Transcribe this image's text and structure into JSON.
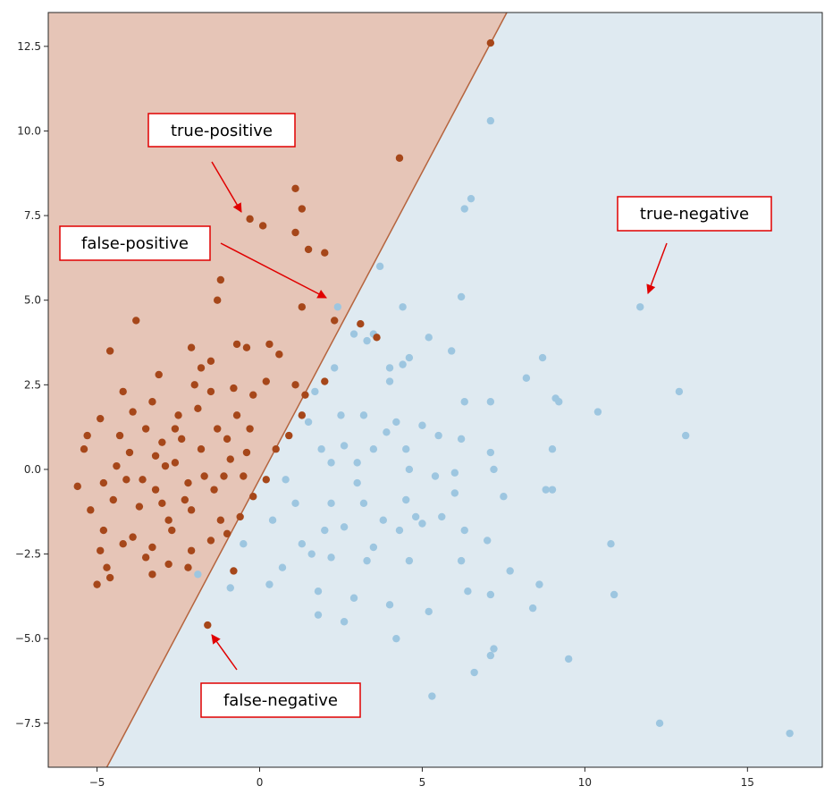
{
  "colors": {
    "positive_region": "#e6c5b7",
    "negative_region": "#dfeaf1",
    "positive_point": "#a6471a",
    "negative_point": "#9dc6e0",
    "boundary": "#b5643e",
    "annotation": "#e00000",
    "axis": "#262626"
  },
  "chart_data": {
    "type": "scatter",
    "xlim": [
      -6.5,
      17.3
    ],
    "ylim": [
      -8.8,
      13.5
    ],
    "grid": false,
    "x_ticks": [
      -5,
      0,
      5,
      10,
      15
    ],
    "x_tick_labels": [
      "−5",
      "0",
      "5",
      "10",
      "15"
    ],
    "y_ticks": [
      -7.5,
      -5.0,
      -2.5,
      0.0,
      2.5,
      5.0,
      7.5,
      10.0,
      12.5
    ],
    "y_tick_labels": [
      "−7.5",
      "−5.0",
      "−2.5",
      "0.0",
      "2.5",
      "5.0",
      "7.5",
      "10.0",
      "12.5"
    ],
    "decision_boundary": [
      [
        -4.7,
        -8.8
      ],
      [
        7.6,
        13.5
      ]
    ],
    "positive_points": [
      [
        7.1,
        12.6
      ],
      [
        4.3,
        9.2
      ],
      [
        1.1,
        8.3
      ],
      [
        1.3,
        7.7
      ],
      [
        -0.3,
        7.4
      ],
      [
        0.1,
        7.2
      ],
      [
        1.1,
        7.0
      ],
      [
        1.5,
        6.5
      ],
      [
        2.0,
        6.4
      ],
      [
        -1.2,
        5.6
      ],
      [
        -1.3,
        5.0
      ],
      [
        1.3,
        4.8
      ],
      [
        2.3,
        4.4
      ],
      [
        3.1,
        4.3
      ],
      [
        3.6,
        3.9
      ],
      [
        -3.8,
        4.4
      ],
      [
        -2.1,
        3.6
      ],
      [
        -0.7,
        3.7
      ],
      [
        -0.4,
        3.6
      ],
      [
        0.3,
        3.7
      ],
      [
        0.6,
        3.4
      ],
      [
        -1.5,
        3.2
      ],
      [
        -4.6,
        3.5
      ],
      [
        2.0,
        2.6
      ],
      [
        1.4,
        2.2
      ],
      [
        1.1,
        2.5
      ],
      [
        0.2,
        2.6
      ],
      [
        -0.2,
        2.2
      ],
      [
        -1.8,
        3.0
      ],
      [
        -3.1,
        2.8
      ],
      [
        -4.2,
        2.3
      ],
      [
        -4.9,
        1.5
      ],
      [
        -5.3,
        1.0
      ],
      [
        -5.4,
        0.6
      ],
      [
        -5.6,
        -0.5
      ],
      [
        -5.2,
        -1.2
      ],
      [
        -4.8,
        -1.8
      ],
      [
        -4.9,
        -2.4
      ],
      [
        -4.7,
        -2.9
      ],
      [
        -4.6,
        -3.2
      ],
      [
        -5.0,
        -3.4
      ],
      [
        -3.3,
        -3.1
      ],
      [
        -2.8,
        -2.8
      ],
      [
        -2.1,
        -2.4
      ],
      [
        -1.5,
        -2.1
      ],
      [
        -1.0,
        -1.9
      ],
      [
        -0.6,
        -1.4
      ],
      [
        -0.2,
        -0.8
      ],
      [
        0.2,
        -0.3
      ],
      [
        0.5,
        0.6
      ],
      [
        0.9,
        1.0
      ],
      [
        1.3,
        1.6
      ],
      [
        -1.6,
        -4.6
      ],
      [
        -0.8,
        -3.0
      ],
      [
        -4.0,
        0.5
      ],
      [
        -3.5,
        1.2
      ],
      [
        -3.0,
        0.8
      ],
      [
        -2.6,
        0.2
      ],
      [
        -2.2,
        -0.4
      ],
      [
        -1.8,
        0.6
      ],
      [
        -1.3,
        1.2
      ],
      [
        -0.9,
        0.3
      ],
      [
        -0.5,
        -0.2
      ],
      [
        -3.2,
        -0.6
      ],
      [
        -3.7,
        -1.1
      ],
      [
        -4.1,
        -0.3
      ],
      [
        -2.8,
        -1.5
      ],
      [
        -2.3,
        -0.9
      ],
      [
        -1.9,
        1.8
      ],
      [
        -1.5,
        2.3
      ],
      [
        -2.5,
        1.6
      ],
      [
        -3.3,
        2.0
      ],
      [
        -4.4,
        0.1
      ],
      [
        -3.9,
        -2.0
      ],
      [
        -3.3,
        -2.3
      ],
      [
        -2.7,
        -1.8
      ],
      [
        -2.1,
        -1.2
      ],
      [
        -1.4,
        -0.6
      ],
      [
        -1.0,
        0.9
      ],
      [
        -0.7,
        1.6
      ],
      [
        -2.9,
        0.1
      ],
      [
        -3.6,
        -0.3
      ],
      [
        -4.5,
        -0.9
      ],
      [
        -3.0,
        -1.0
      ],
      [
        -2.4,
        0.9
      ],
      [
        -1.7,
        -0.2
      ],
      [
        -1.2,
        -1.5
      ],
      [
        -0.3,
        1.2
      ],
      [
        -4.3,
        1.0
      ],
      [
        -3.9,
        1.7
      ],
      [
        -2.0,
        2.5
      ],
      [
        -0.8,
        2.4
      ],
      [
        -2.2,
        -2.9
      ],
      [
        -3.5,
        -2.6
      ],
      [
        -4.2,
        -2.2
      ],
      [
        -4.8,
        -0.4
      ],
      [
        -3.2,
        0.4
      ],
      [
        -2.6,
        1.2
      ],
      [
        -1.1,
        -0.2
      ],
      [
        -0.4,
        0.5
      ]
    ],
    "negative_points": [
      [
        7.1,
        10.3
      ],
      [
        6.5,
        8.0
      ],
      [
        6.3,
        7.7
      ],
      [
        3.7,
        6.0
      ],
      [
        6.2,
        5.1
      ],
      [
        2.4,
        4.8
      ],
      [
        4.4,
        4.8
      ],
      [
        11.7,
        4.8
      ],
      [
        5.2,
        3.9
      ],
      [
        3.5,
        4.0
      ],
      [
        2.9,
        4.0
      ],
      [
        3.3,
        3.8
      ],
      [
        5.9,
        3.5
      ],
      [
        4.6,
        3.3
      ],
      [
        8.7,
        3.3
      ],
      [
        4.4,
        3.1
      ],
      [
        4.0,
        3.0
      ],
      [
        8.2,
        2.7
      ],
      [
        4.0,
        2.6
      ],
      [
        12.9,
        2.3
      ],
      [
        9.1,
        2.1
      ],
      [
        6.3,
        2.0
      ],
      [
        7.1,
        2.0
      ],
      [
        9.2,
        2.0
      ],
      [
        10.4,
        1.7
      ],
      [
        2.5,
        1.6
      ],
      [
        3.2,
        1.6
      ],
      [
        4.2,
        1.4
      ],
      [
        5.0,
        1.3
      ],
      [
        13.1,
        1.0
      ],
      [
        5.5,
        1.0
      ],
      [
        6.2,
        0.9
      ],
      [
        3.5,
        0.6
      ],
      [
        4.5,
        0.6
      ],
      [
        7.1,
        0.5
      ],
      [
        9.0,
        0.6
      ],
      [
        2.2,
        0.2
      ],
      [
        3.0,
        0.2
      ],
      [
        4.6,
        0.0
      ],
      [
        6.0,
        -0.1
      ],
      [
        7.2,
        0.0
      ],
      [
        5.4,
        -0.2
      ],
      [
        2.2,
        -1.0
      ],
      [
        3.2,
        -1.0
      ],
      [
        4.5,
        -0.9
      ],
      [
        6.0,
        -0.7
      ],
      [
        7.5,
        -0.8
      ],
      [
        8.8,
        -0.6
      ],
      [
        9.0,
        -0.6
      ],
      [
        2.6,
        -1.7
      ],
      [
        3.8,
        -1.5
      ],
      [
        4.8,
        -1.4
      ],
      [
        5.6,
        -1.4
      ],
      [
        6.3,
        -1.8
      ],
      [
        7.0,
        -2.1
      ],
      [
        10.8,
        -2.2
      ],
      [
        1.6,
        -2.5
      ],
      [
        2.2,
        -2.6
      ],
      [
        3.3,
        -2.7
      ],
      [
        4.6,
        -2.7
      ],
      [
        6.2,
        -2.7
      ],
      [
        7.7,
        -3.0
      ],
      [
        0.3,
        -3.4
      ],
      [
        1.8,
        -3.6
      ],
      [
        2.9,
        -3.8
      ],
      [
        4.0,
        -4.0
      ],
      [
        5.2,
        -4.2
      ],
      [
        6.4,
        -3.6
      ],
      [
        7.1,
        -3.7
      ],
      [
        8.6,
        -3.4
      ],
      [
        10.9,
        -3.7
      ],
      [
        1.8,
        -4.3
      ],
      [
        2.6,
        -4.5
      ],
      [
        4.2,
        -5.0
      ],
      [
        7.2,
        -5.3
      ],
      [
        8.4,
        -4.1
      ],
      [
        7.1,
        -5.5
      ],
      [
        9.5,
        -5.6
      ],
      [
        6.6,
        -6.0
      ],
      [
        5.3,
        -6.7
      ],
      [
        12.3,
        -7.5
      ],
      [
        16.3,
        -7.8
      ],
      [
        -1.9,
        -3.1
      ],
      [
        -0.9,
        -3.5
      ],
      [
        0.7,
        -2.9
      ],
      [
        1.3,
        -2.2
      ],
      [
        2.0,
        -1.8
      ],
      [
        3.5,
        -2.3
      ],
      [
        4.3,
        -1.8
      ],
      [
        5.0,
        -1.6
      ],
      [
        3.0,
        -0.4
      ],
      [
        2.6,
        0.7
      ],
      [
        3.9,
        1.1
      ],
      [
        1.5,
        1.4
      ],
      [
        1.9,
        0.6
      ],
      [
        0.8,
        -0.3
      ],
      [
        1.1,
        -1.0
      ],
      [
        0.4,
        -1.5
      ],
      [
        -0.5,
        -2.2
      ],
      [
        1.7,
        2.3
      ],
      [
        2.3,
        3.0
      ]
    ]
  },
  "annotations": [
    {
      "id": "true-positive",
      "label": "true-positive"
    },
    {
      "id": "false-positive",
      "label": "false-positive"
    },
    {
      "id": "true-negative",
      "label": "true-negative"
    },
    {
      "id": "false-negative",
      "label": "false-negative"
    }
  ]
}
